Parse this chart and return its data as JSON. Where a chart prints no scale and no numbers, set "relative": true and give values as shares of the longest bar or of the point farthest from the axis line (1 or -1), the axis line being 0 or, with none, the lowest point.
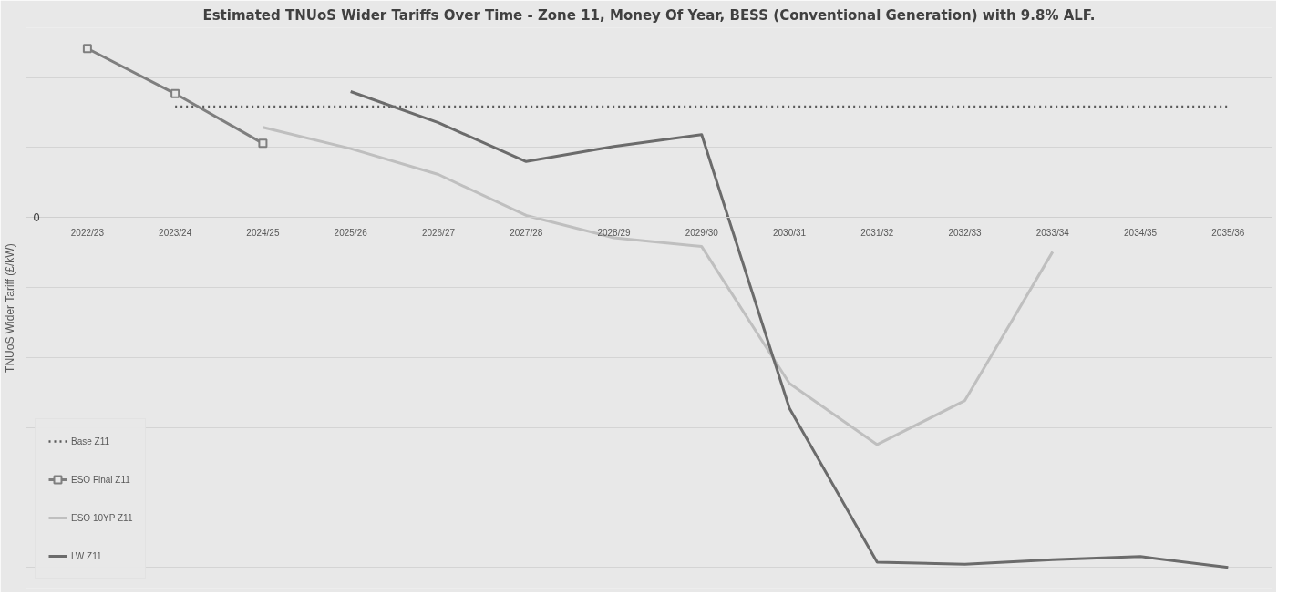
{
  "chart_data": {
    "type": "line",
    "title": "Estimated TNUoS Wider Tariffs Over Time - Zone 11, Money Of Year, BESS (Conventional Generation) with 9.8% ALF.",
    "ylabel": "TNUoS Wider Tariff (£/kW)",
    "relative": true,
    "categories": [
      "2022/23",
      "2023/24",
      "2024/25",
      "2025/26",
      "2026/27",
      "2027/28",
      "2028/29",
      "2029/30",
      "2030/31",
      "2031/32",
      "2032/33",
      "2033/34",
      "2034/35",
      "2035/36"
    ],
    "series": [
      {
        "name": "Base Z11",
        "color": "#595959",
        "line_style": "dotted",
        "marker": "none",
        "values": [
          null,
          0.317,
          0.317,
          0.317,
          0.317,
          0.317,
          0.317,
          0.317,
          0.317,
          0.317,
          0.317,
          0.317,
          0.317,
          0.317
        ]
      },
      {
        "name": "ESO Final Z11",
        "color": "#7f7f7f",
        "line_style": "solid",
        "marker": "square",
        "values": [
          0.483,
          0.354,
          0.212,
          null,
          null,
          null,
          null,
          null,
          null,
          null,
          null,
          null,
          null,
          null
        ]
      },
      {
        "name": "ESO 10YP Z11",
        "color": "#bfbfbf",
        "line_style": "solid",
        "marker": "none",
        "values": [
          null,
          null,
          0.258,
          0.197,
          0.123,
          0.006,
          -0.058,
          -0.083,
          -0.474,
          -0.649,
          -0.523,
          -0.098,
          null,
          null
        ]
      },
      {
        "name": "LW Z11",
        "color": "#6b6b6b",
        "line_style": "solid",
        "marker": "none",
        "values": [
          null,
          null,
          null,
          0.36,
          0.271,
          0.16,
          0.203,
          0.237,
          -0.545,
          -0.985,
          -0.991,
          -0.978,
          -0.969,
          -1
        ]
      }
    ],
    "annotations": [
      "0"
    ],
    "grid": "y",
    "legend": "bottom left"
  }
}
